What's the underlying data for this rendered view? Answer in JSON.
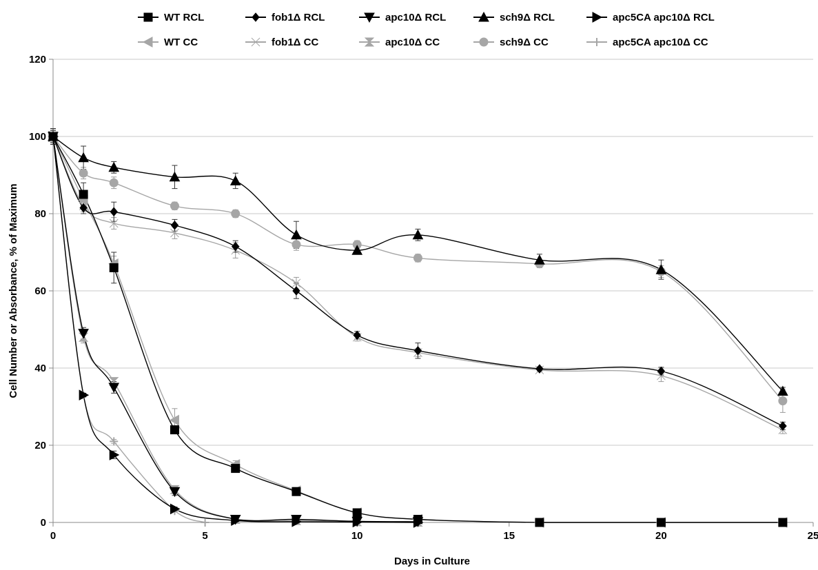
{
  "chart_data": {
    "type": "line",
    "title": "",
    "xlabel": "Days in Culture",
    "ylabel": "Cell Number or Absorbance, % of Maximum",
    "xlim": [
      0,
      25
    ],
    "ylim": [
      0,
      120
    ],
    "xticks": [
      0,
      5,
      10,
      15,
      20,
      25
    ],
    "yticks": [
      0,
      20,
      40,
      60,
      80,
      100,
      120
    ],
    "grid": "horizontal",
    "legend_position": "top",
    "series": [
      {
        "name": "WT   RCL",
        "color": "#000000",
        "marker": "square",
        "x": [
          0,
          1,
          2,
          4,
          6,
          8,
          10,
          12,
          16,
          20,
          24
        ],
        "y": [
          100,
          85,
          66,
          24,
          14,
          8,
          2.5,
          0.8,
          0,
          0,
          0
        ],
        "err": [
          2,
          3,
          4,
          1,
          1,
          0.5,
          0.5,
          0.3,
          0,
          0,
          0
        ]
      },
      {
        "name": "fob1Δ RCL",
        "color": "#000000",
        "marker": "diamond",
        "x": [
          0,
          1,
          2,
          4,
          6,
          8,
          10,
          12,
          16,
          20,
          24
        ],
        "y": [
          100,
          81.5,
          80.5,
          77,
          71.5,
          60,
          48.5,
          44.5,
          39.8,
          39.2,
          25
        ],
        "err": [
          2,
          1.5,
          2.5,
          1.5,
          1.5,
          2,
          1,
          2,
          0.5,
          1,
          1
        ]
      },
      {
        "name": "apc10Δ RCL",
        "color": "#000000",
        "marker": "tri-down",
        "x": [
          0,
          1,
          2,
          4,
          6,
          8,
          10,
          12
        ],
        "y": [
          100,
          49,
          35,
          8,
          0.8,
          0.8,
          0.3,
          0.2
        ],
        "err": [
          1.5,
          1.5,
          1.5,
          1,
          0.3,
          0.2,
          0.1,
          0.1
        ]
      },
      {
        "name": "sch9Δ RCL",
        "color": "#000000",
        "marker": "tri-up",
        "x": [
          0,
          1,
          2,
          4,
          6,
          8,
          10,
          12,
          16,
          20,
          24
        ],
        "y": [
          100,
          94.5,
          92,
          89.5,
          88.5,
          74.5,
          70.5,
          74.5,
          68,
          65.5,
          34
        ],
        "err": [
          2,
          3,
          1.5,
          3,
          2,
          3.5,
          0.8,
          1.5,
          1.5,
          2.5,
          1
        ]
      },
      {
        "name": "apc5CA apc10Δ RCL",
        "color": "#000000",
        "marker": "tri-right",
        "x": [
          0,
          1,
          2,
          4,
          6,
          8,
          10,
          12
        ],
        "y": [
          100,
          33,
          17.5,
          3.5,
          0.5,
          0.2,
          0.1,
          0
        ],
        "err": [
          1.5,
          0.5,
          1,
          0.5,
          0.2,
          0.1,
          0,
          0
        ]
      },
      {
        "name": "WT   CC",
        "color": "#a6a6a6",
        "marker": "tri-left",
        "x": [
          0,
          1,
          2,
          4,
          6,
          8,
          10,
          12,
          16,
          20,
          24
        ],
        "y": [
          100,
          83.5,
          67,
          26.5,
          15,
          8.2,
          2.5,
          0.8,
          0,
          0,
          0
        ],
        "err": [
          2,
          2,
          2,
          3,
          1,
          0.5,
          0.5,
          0.3,
          0,
          0,
          0
        ]
      },
      {
        "name": "fob1Δ CC",
        "color": "#a6a6a6",
        "marker": "bowtie",
        "x": [
          0,
          1,
          2,
          4,
          6,
          8,
          10,
          12,
          16,
          20,
          24
        ],
        "y": [
          100,
          82,
          77.5,
          75,
          70.5,
          62,
          48,
          44,
          39.5,
          38,
          24
        ],
        "err": [
          2,
          1.5,
          1.5,
          1.5,
          2,
          1.5,
          1,
          1,
          0.5,
          1.5,
          1
        ]
      },
      {
        "name": "apc10Δ CC",
        "color": "#a6a6a6",
        "marker": "hourglass",
        "x": [
          0,
          1,
          2,
          4,
          6,
          8,
          10,
          12
        ],
        "y": [
          100,
          48,
          36.5,
          8.5,
          0.8,
          0.5,
          0.2,
          0.1
        ],
        "err": [
          1.5,
          1.5,
          1,
          1,
          0.2,
          0.1,
          0.1,
          0
        ]
      },
      {
        "name": "sch9Δ CC",
        "color": "#a6a6a6",
        "marker": "circle",
        "x": [
          0,
          1,
          2,
          4,
          6,
          8,
          10,
          12,
          16,
          20,
          24
        ],
        "y": [
          100,
          90.5,
          88,
          82,
          80,
          72,
          72,
          68.5,
          67,
          65,
          31.5
        ],
        "err": [
          2,
          1.5,
          1.5,
          1,
          1,
          1.5,
          1,
          1,
          1,
          1.5,
          3
        ]
      },
      {
        "name": "apc5CA apc10Δ CC",
        "color": "#a6a6a6",
        "marker": "plus",
        "x": [
          0,
          1,
          2,
          4,
          5
        ],
        "y": [
          100,
          33,
          21,
          3,
          0
        ],
        "err": [
          2,
          0.5,
          0.5,
          0.3,
          0
        ]
      }
    ]
  }
}
